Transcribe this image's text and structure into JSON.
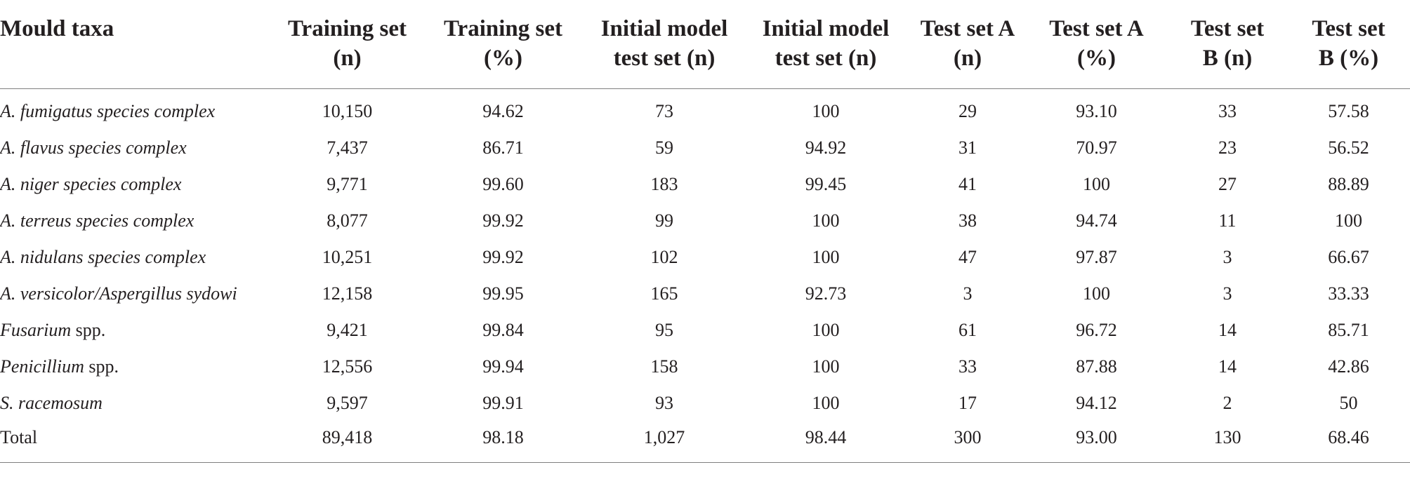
{
  "table": {
    "headers": [
      [
        "Mould taxa"
      ],
      [
        "Training set",
        "(n)"
      ],
      [
        "Training set",
        "(%)"
      ],
      [
        "Initial model",
        "test set (n)"
      ],
      [
        "Initial model",
        "test set (n)"
      ],
      [
        "Test set A",
        "(n)"
      ],
      [
        "Test set A",
        "(%)"
      ],
      [
        "Test set",
        "B (n)"
      ],
      [
        "Test set",
        "B (%)"
      ]
    ],
    "rows": [
      {
        "taxa_italic": "A. fumigatus species complex",
        "taxa_plain": "",
        "values": [
          "10,150",
          "94.62",
          "73",
          "100",
          "29",
          "93.10",
          "33",
          "57.58"
        ]
      },
      {
        "taxa_italic": "A. flavus species complex",
        "taxa_plain": "",
        "values": [
          "7,437",
          "86.71",
          "59",
          "94.92",
          "31",
          "70.97",
          "23",
          "56.52"
        ]
      },
      {
        "taxa_italic": "A. niger species complex",
        "taxa_plain": "",
        "values": [
          "9,771",
          "99.60",
          "183",
          "99.45",
          "41",
          "100",
          "27",
          "88.89"
        ]
      },
      {
        "taxa_italic": "A. terreus species complex",
        "taxa_plain": "",
        "values": [
          "8,077",
          "99.92",
          "99",
          "100",
          "38",
          "94.74",
          "11",
          "100"
        ]
      },
      {
        "taxa_italic": "A. nidulans species complex",
        "taxa_plain": "",
        "values": [
          "10,251",
          "99.92",
          "102",
          "100",
          "47",
          "97.87",
          "3",
          "66.67"
        ]
      },
      {
        "taxa_italic": "A. versicolor/Aspergillus sydowi",
        "taxa_plain": "",
        "values": [
          "12,158",
          "99.95",
          "165",
          "92.73",
          "3",
          "100",
          "3",
          "33.33"
        ]
      },
      {
        "taxa_italic": "Fusarium",
        "taxa_plain": " spp.",
        "values": [
          "9,421",
          "99.84",
          "95",
          "100",
          "61",
          "96.72",
          "14",
          "85.71"
        ]
      },
      {
        "taxa_italic": "Penicillium",
        "taxa_plain": " spp.",
        "values": [
          "12,556",
          "99.94",
          "158",
          "100",
          "33",
          "87.88",
          "14",
          "42.86"
        ]
      },
      {
        "taxa_italic": "S. racemosum",
        "taxa_plain": "",
        "values": [
          "9,597",
          "99.91",
          "93",
          "100",
          "17",
          "94.12",
          "2",
          "50"
        ]
      },
      {
        "taxa_italic": "",
        "taxa_plain": "Total",
        "values": [
          "89,418",
          "98.18",
          "1,027",
          "98.44",
          "300",
          "93.00",
          "130",
          "68.46"
        ]
      }
    ]
  }
}
